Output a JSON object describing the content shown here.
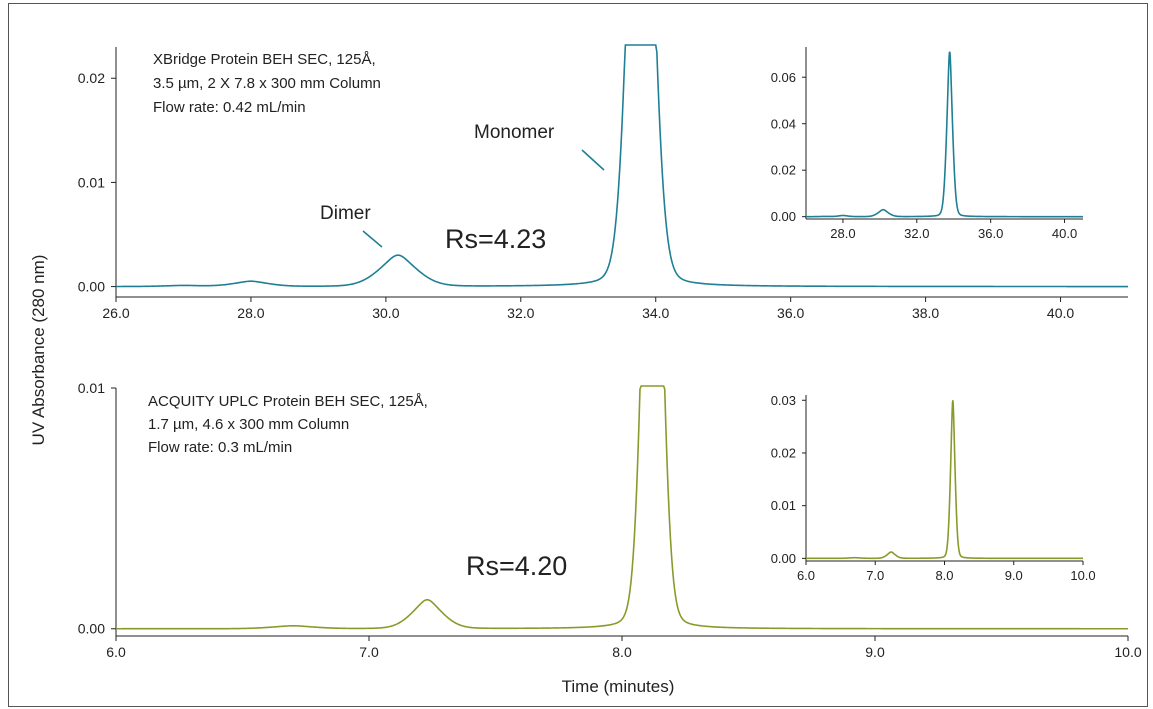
{
  "figure": {
    "ylabel": "UV Absorbance (280 nm)",
    "xlabel": "Time (minutes)"
  },
  "chart_data": [
    {
      "type": "line",
      "id": "top-main",
      "color": "#1f7f95",
      "annotations": {
        "column": [
          "XBridge Protein BEH SEC, 125Å,",
          "3.5 µm, 2 X 7.8 x 300 mm Column",
          "Flow rate: 0.42 mL/min"
        ],
        "dimer_label": "Dimer",
        "monomer_label": "Monomer",
        "rs": "Rs=4.23"
      },
      "xlim": [
        26.0,
        41.0
      ],
      "ylim": [
        -0.001,
        0.023
      ],
      "xticks": [
        26.0,
        28.0,
        30.0,
        32.0,
        34.0,
        36.0,
        38.0,
        40.0
      ],
      "xtick_labels": [
        "26.0",
        "28.0",
        "30.0",
        "32.0",
        "34.0",
        "36.0",
        "38.0",
        "40.0"
      ],
      "yticks": [
        0.0,
        0.01,
        0.02
      ],
      "ytick_labels": [
        "0.00",
        "0.01",
        "0.02"
      ],
      "peaks": [
        {
          "center": 27.0,
          "height": 0.0001,
          "width": 0.3
        },
        {
          "center": 28.0,
          "height": 0.0005,
          "width": 0.28
        },
        {
          "center": 30.18,
          "height": 0.003,
          "width": 0.3
        },
        {
          "center": 33.78,
          "height": 0.071,
          "width": 0.17
        }
      ]
    },
    {
      "type": "line",
      "id": "top-inset",
      "color": "#1f7f95",
      "xlim": [
        26.0,
        41.0
      ],
      "ylim": [
        -0.001,
        0.073
      ],
      "xticks": [
        28.0,
        32.0,
        36.0,
        40.0
      ],
      "xtick_labels": [
        "28.0",
        "32.0",
        "36.0",
        "40.0"
      ],
      "yticks": [
        0.0,
        0.02,
        0.04,
        0.06
      ],
      "ytick_labels": [
        "0.00",
        "0.02",
        "0.04",
        "0.06"
      ]
    },
    {
      "type": "line",
      "id": "bottom-main",
      "color": "#8a9a2a",
      "annotations": {
        "column": [
          "ACQUITY UPLC Protein BEH SEC, 125Å,",
          "1.7 µm, 4.6 x 300 mm Column",
          "Flow rate: 0.3 mL/min"
        ],
        "rs": "Rs=4.20"
      },
      "xlim": [
        6.0,
        10.0
      ],
      "ylim": [
        -0.0003,
        0.01
      ],
      "xticks": [
        6.0,
        7.0,
        8.0,
        9.0,
        10.0
      ],
      "xtick_labels": [
        "6.0",
        "7.0",
        "8.0",
        "9.0",
        "10.0"
      ],
      "yticks": [
        0.0,
        0.01
      ],
      "ytick_labels": [
        "0.00",
        "0.01"
      ],
      "peaks": [
        {
          "center": 6.7,
          "height": 0.00012,
          "width": 0.09
        },
        {
          "center": 7.23,
          "height": 0.0012,
          "width": 0.065
        },
        {
          "center": 8.12,
          "height": 0.03,
          "width": 0.036
        }
      ]
    },
    {
      "type": "line",
      "id": "bottom-inset",
      "color": "#8a9a2a",
      "xlim": [
        6.0,
        10.0
      ],
      "ylim": [
        -0.0005,
        0.031
      ],
      "xticks": [
        6.0,
        7.0,
        8.0,
        9.0,
        10.0
      ],
      "xtick_labels": [
        "6.0",
        "7.0",
        "8.0",
        "9.0",
        "10.0"
      ],
      "yticks": [
        0.0,
        0.01,
        0.02,
        0.03
      ],
      "ytick_labels": [
        "0.00",
        "0.01",
        "0.02",
        "0.03"
      ]
    }
  ]
}
